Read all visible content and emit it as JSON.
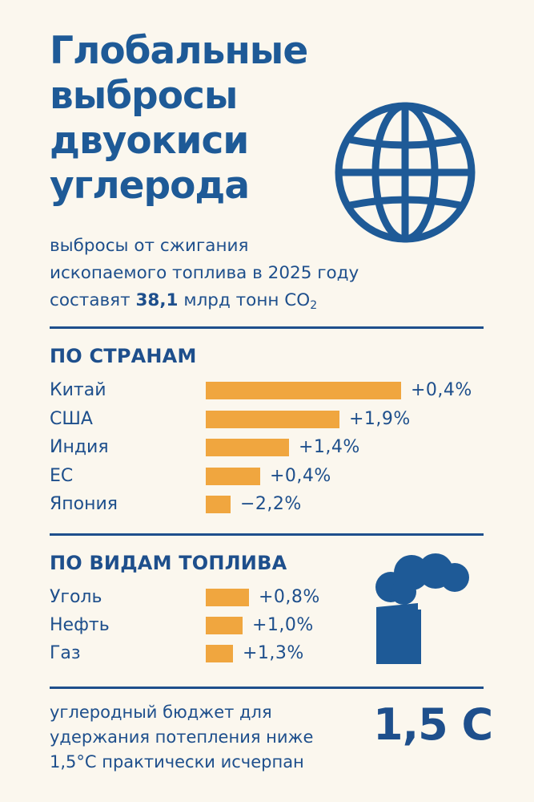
{
  "header": {
    "title_lines": [
      "Глобальные",
      "выбросы",
      "двуокиси",
      "углерода"
    ],
    "subtitle_line1": "выбросы от сжигания",
    "subtitle_line2": "ископаемого топлива  в 2025 году",
    "subtitle_line3_pre": "составят ",
    "subtitle_value": "38,1",
    "subtitle_line3_post": " млрд тонн CO",
    "subtitle_sub": "2"
  },
  "icons": {
    "globe": "globe-icon",
    "factory": "factory-smoke-icon"
  },
  "colors": {
    "primary": "#1e4f8c",
    "bar": "#f0a63f",
    "background": "#fbf7ee"
  },
  "chart_data": [
    {
      "type": "bar",
      "title": "ПО СТРАНАМ",
      "categories": [
        "Китай",
        "США",
        "Индия",
        "ЕС",
        "Япония"
      ],
      "values": [
        244,
        167,
        104,
        68,
        31
      ],
      "labels": [
        "+0,4%",
        "+1,9%",
        "+1,4%",
        "+0,4%",
        "−2,2%"
      ]
    },
    {
      "type": "bar",
      "title": "ПО ВИДАМ ТОПЛИВА",
      "categories": [
        "Уголь",
        "Нефть",
        "Газ"
      ],
      "values": [
        54,
        46,
        34
      ],
      "labels": [
        "+0,8%",
        "+1,0%",
        "+1,3%"
      ]
    }
  ],
  "footer": {
    "text_lines": [
      "углеродный бюджет для",
      "удержания потепления  ниже",
      "1,5°C практически исчерпан"
    ],
    "big_value": "1,5 C"
  }
}
